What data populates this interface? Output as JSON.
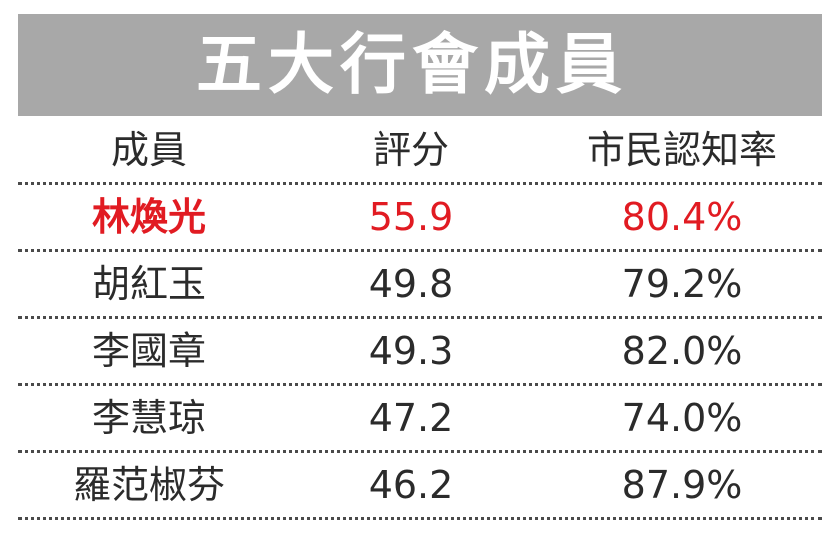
{
  "title": "五大行會成員",
  "colors": {
    "title_bg": "#a8a8a8",
    "title_text": "#ffffff",
    "highlight": "#e11b22",
    "text": "#2b2b2b"
  },
  "table": {
    "headers": [
      "成員",
      "評分",
      "市民認知率"
    ],
    "rows": [
      {
        "name": "林煥光",
        "score": "55.9",
        "recognition": "80.4%",
        "highlight": true
      },
      {
        "name": "胡紅玉",
        "score": "49.8",
        "recognition": "79.2%",
        "highlight": false
      },
      {
        "name": "李國章",
        "score": "49.3",
        "recognition": "82.0%",
        "highlight": false
      },
      {
        "name": "李慧琼",
        "score": "47.2",
        "recognition": "74.0%",
        "highlight": false
      },
      {
        "name": "羅范椒芬",
        "score": "46.2",
        "recognition": "87.9%",
        "highlight": false
      }
    ]
  },
  "chart_data": {
    "type": "table",
    "title": "五大行會成員",
    "columns": [
      "成員",
      "評分",
      "市民認知率"
    ],
    "rows": [
      [
        "林煥光",
        55.9,
        "80.4%"
      ],
      [
        "胡紅玉",
        49.8,
        "79.2%"
      ],
      [
        "李國章",
        49.3,
        "82.0%"
      ],
      [
        "李慧琼",
        47.2,
        "74.0%"
      ],
      [
        "羅范椒芬",
        46.2,
        "87.9%"
      ]
    ]
  }
}
